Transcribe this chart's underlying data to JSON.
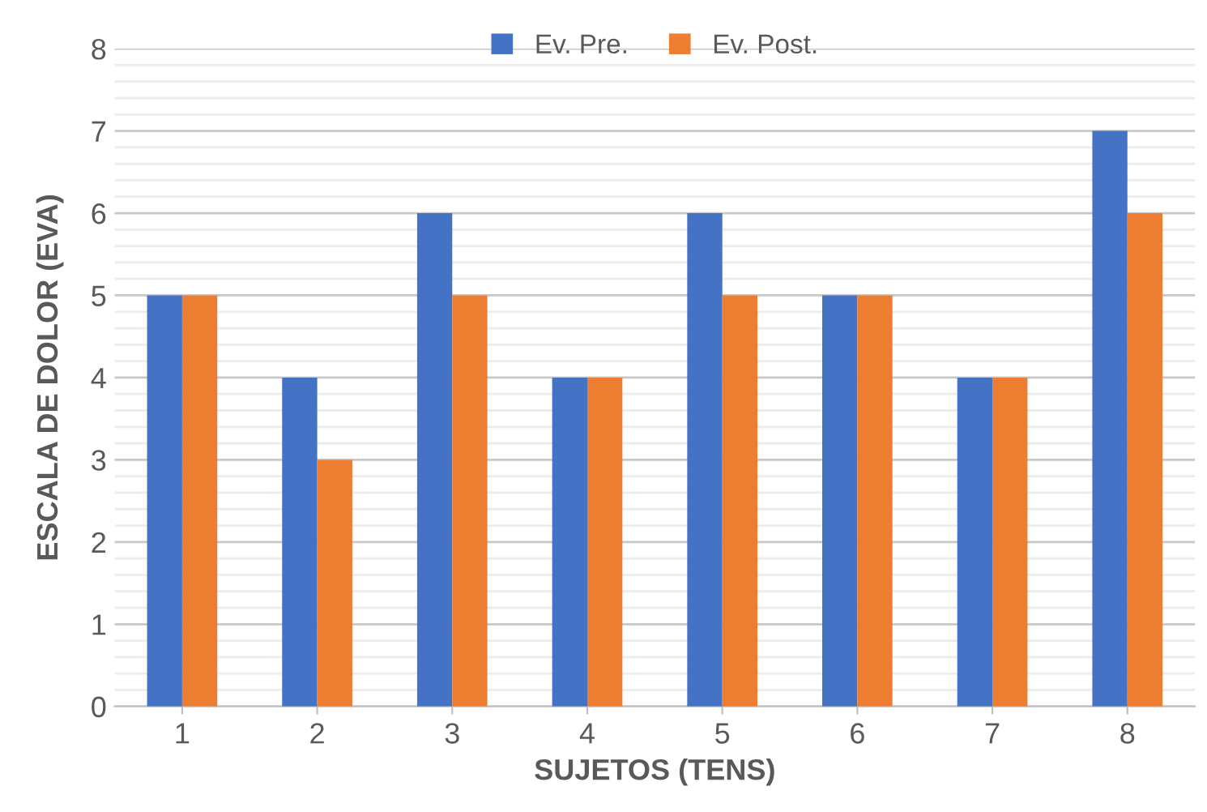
{
  "chart_data": {
    "type": "bar",
    "xlabel": "SUJETOS (TENS)",
    "ylabel": "ESCALA DE DOLOR (EVA)",
    "categories": [
      "1",
      "2",
      "3",
      "4",
      "5",
      "6",
      "7",
      "8"
    ],
    "series": [
      {
        "name": "Ev. Pre.",
        "color": "#4472c4",
        "values": [
          5,
          4,
          6,
          4,
          6,
          5,
          4,
          7
        ]
      },
      {
        "name": "Ev. Post.",
        "color": "#ed7d31",
        "values": [
          5,
          3,
          5,
          4,
          5,
          5,
          4,
          6
        ]
      }
    ],
    "ylim": [
      0,
      8
    ],
    "yticks": [
      0,
      1,
      2,
      3,
      4,
      5,
      6,
      7,
      8
    ],
    "grid": "y",
    "legend": "top"
  }
}
